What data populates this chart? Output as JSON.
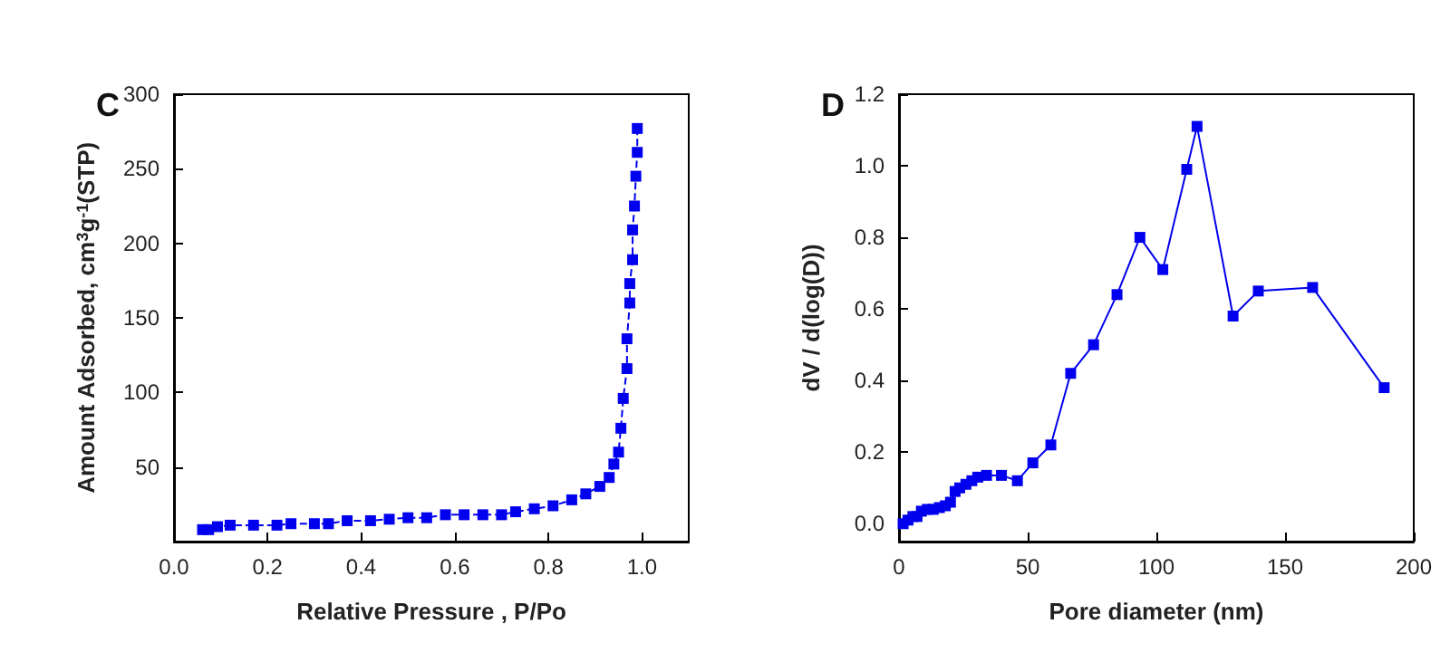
{
  "chart_data": [
    {
      "type": "line",
      "title": "C",
      "xlabel": "Relative Pressure , P/Po",
      "ylabel": "Amount Adsorbed, cm$^{3}$g$^{-1}$(STP)",
      "marker": "square",
      "line_style": "dashed",
      "xlim": [
        0,
        1.1
      ],
      "xticks": [
        {
          "value": 0,
          "label": "0.0"
        },
        0.2,
        0.4,
        0.6,
        0.8,
        {
          "value": 1,
          "label": "1.0"
        }
      ],
      "ylim": [
        0,
        300
      ],
      "yticks": [
        50,
        100,
        150,
        200,
        250,
        300
      ],
      "series": [
        {
          "color": "#0000ee",
          "x": [
            0.061,
            0.074,
            0.093,
            0.12,
            0.17,
            0.22,
            0.25,
            0.3,
            0.33,
            0.37,
            0.42,
            0.46,
            0.5,
            0.54,
            0.58,
            0.62,
            0.66,
            0.7,
            0.73,
            0.77,
            0.81,
            0.85,
            0.88,
            0.91,
            0.93,
            0.94,
            0.95,
            0.955,
            0.96,
            0.968,
            0.968,
            0.974,
            0.974,
            0.98,
            0.98,
            0.984,
            0.987,
            0.99,
            0.99
          ],
          "values": [
            8,
            8,
            10,
            11,
            11,
            11,
            12,
            12,
            12,
            14,
            14,
            15,
            16,
            16,
            18,
            18,
            18,
            18,
            20,
            22,
            24,
            28,
            32,
            37,
            43,
            52,
            60,
            76,
            96,
            116,
            136,
            160,
            173,
            189,
            209,
            225,
            245,
            261,
            277
          ]
        }
      ]
    },
    {
      "type": "line",
      "title": "D",
      "xlabel": "Pore diameter (nm)",
      "ylabel": "dV / d(log(D))",
      "marker": "square",
      "line_style": "solid",
      "xlim": [
        0,
        200
      ],
      "xticks": [
        0,
        50,
        100,
        150,
        200
      ],
      "ylim": [
        -0.05,
        1.2
      ],
      "yticks": [
        {
          "value": 0,
          "label": "0.0"
        },
        0.2,
        0.4,
        0.6,
        0.8,
        {
          "value": 1,
          "label": "1.0"
        },
        1.2
      ],
      "series": [
        {
          "color": "#0000ee",
          "x": [
            1.6,
            3.5,
            5.4,
            7,
            8.7,
            11,
            13.3,
            15.7,
            18,
            20,
            21.8,
            23.6,
            26,
            28.3,
            30.6,
            34,
            39.8,
            46,
            52,
            59,
            66.7,
            75.6,
            84.7,
            93.6,
            102.5,
            111.8,
            115.8,
            129.8,
            139.6,
            160.7,
            188.5
          ],
          "values": [
            0,
            0.01,
            0.02,
            0.02,
            0.035,
            0.04,
            0.04,
            0.045,
            0.05,
            0.06,
            0.09,
            0.1,
            0.11,
            0.12,
            0.13,
            0.135,
            0.135,
            0.12,
            0.17,
            0.22,
            0.42,
            0.5,
            0.64,
            0.8,
            0.71,
            0.99,
            1.11,
            0.58,
            0.65,
            0.66,
            0.38
          ]
        }
      ]
    }
  ]
}
